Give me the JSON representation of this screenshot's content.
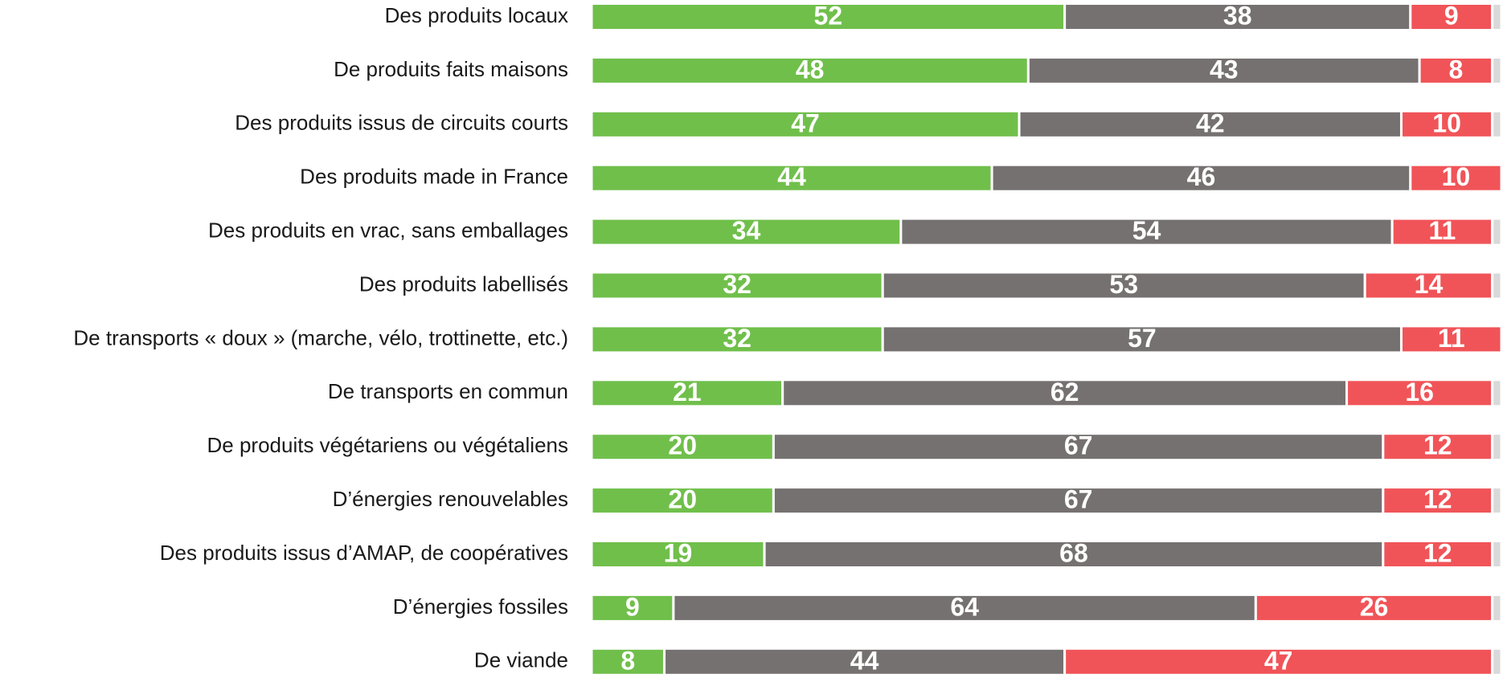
{
  "chart_data": {
    "type": "stacked_bar_horizontal",
    "categories": [
      "Des produits locaux",
      "De produits faits maisons",
      "Des produits issus de circuits courts",
      "Des produits made in France",
      "Des produits en vrac, sans emballages",
      "Des produits labellisés",
      "De transports « doux » (marche, vélo, trottinette, etc.)",
      "De transports en commun",
      "De produits végétariens ou végétaliens",
      "D’énergies renouvelables ",
      "Des produits issus d’AMAP, de coopératives",
      "D’énergies fossiles",
      "De viande"
    ],
    "series": [
      {
        "color": "#70bf4b",
        "values": [
          52,
          48,
          47,
          44,
          34,
          32,
          32,
          21,
          20,
          20,
          19,
          9,
          8
        ]
      },
      {
        "color": "#767171",
        "values": [
          38,
          43,
          42,
          46,
          54,
          53,
          57,
          62,
          67,
          67,
          68,
          64,
          44
        ]
      },
      {
        "color": "#f05458",
        "values": [
          9,
          8,
          10,
          10,
          11,
          14,
          11,
          16,
          12,
          12,
          12,
          26,
          47
        ]
      },
      {
        "color": "#d9d9d9",
        "values": [
          1,
          1,
          1,
          0,
          1,
          1,
          0,
          1,
          1,
          1,
          1,
          1,
          1
        ]
      }
    ],
    "xlim": [
      0,
      100
    ]
  }
}
